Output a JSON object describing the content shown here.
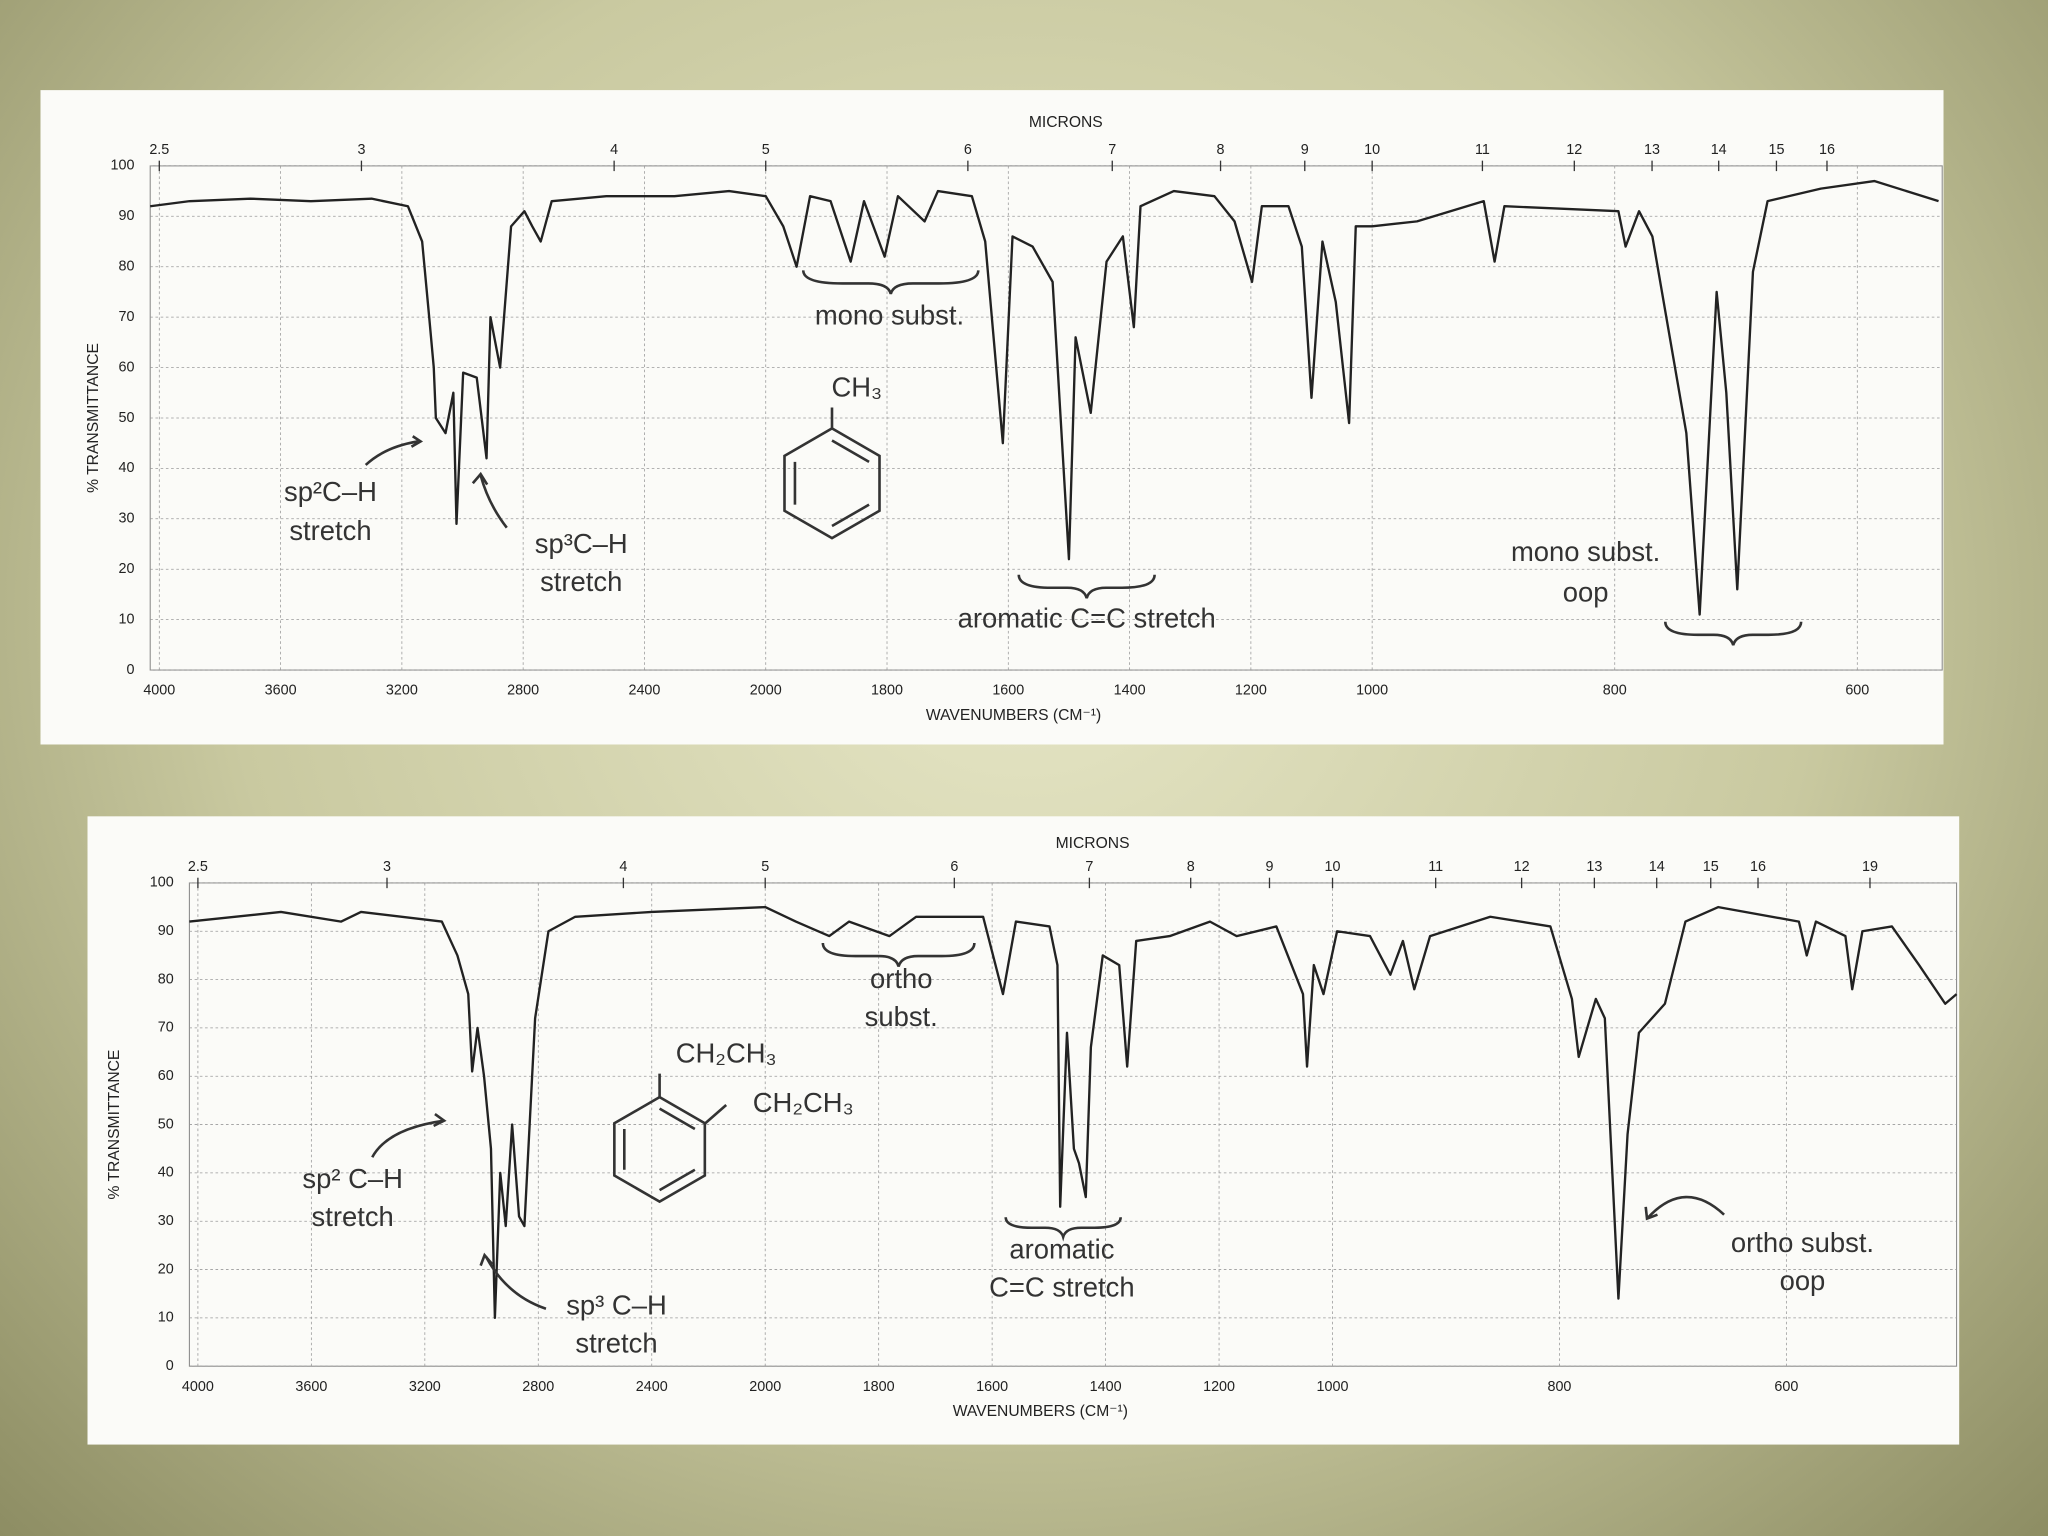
{
  "chart_data": [
    {
      "type": "line",
      "x_label": "WAVENUMBERS (CM⁻¹)",
      "y_label": "% TRANSMITTANCE",
      "x2_label": "MICRONS",
      "xlim": [
        4030,
        530
      ],
      "ylim": [
        0,
        100
      ],
      "x_scale_breaks": [
        2000,
        1000
      ],
      "xticks": [
        4000,
        3600,
        3200,
        2800,
        2400,
        2000,
        1800,
        1600,
        1400,
        1200,
        1000,
        800,
        600
      ],
      "yticks": [
        0,
        10,
        20,
        30,
        40,
        50,
        60,
        70,
        80,
        90,
        100
      ],
      "x2ticks": [
        2.5,
        3,
        4,
        5,
        6,
        7,
        8,
        9,
        10,
        11,
        12,
        13,
        14,
        15,
        16
      ],
      "grid": true,
      "color": "#222222",
      "annotations": [
        "mono subst.",
        "CH₃",
        "sp²C–H",
        "stretch",
        "sp³C–H",
        "stretch",
        "aromatic C=C stretch",
        "mono subst.",
        "oop"
      ],
      "x": [
        4030,
        3900,
        3700,
        3500,
        3300,
        3180,
        3133,
        3110,
        3095,
        3088,
        3056,
        3030,
        3020,
        2998,
        2953,
        2921,
        2908,
        2876,
        2840,
        2796,
        2770,
        2742,
        2706,
        2526,
        2301,
        2121,
        2000,
        1971,
        1949,
        1927,
        1893,
        1860,
        1838,
        1804,
        1782,
        1738,
        1716,
        1660,
        1638,
        1609,
        1593,
        1560,
        1527,
        1500,
        1489,
        1464,
        1438,
        1411,
        1393,
        1382,
        1327,
        1260,
        1227,
        1198,
        1182,
        1138,
        1116,
        1100,
        1082,
        1060,
        1038,
        1027,
        1000,
        963,
        908,
        899,
        891,
        797,
        791,
        780,
        769,
        741,
        730,
        716,
        708,
        699,
        686,
        674,
        630,
        586,
        533
      ],
      "values": [
        92,
        93,
        93.5,
        93,
        93.5,
        92,
        85,
        70,
        60,
        50,
        47,
        55,
        29,
        59,
        58,
        42,
        70,
        60,
        88,
        91,
        88,
        85,
        93,
        94,
        94,
        95,
        94,
        88,
        80,
        94,
        93,
        81,
        93,
        82,
        94,
        89,
        95,
        94,
        85,
        45,
        86,
        84,
        77,
        22,
        66,
        51,
        81,
        86,
        68,
        92,
        95,
        94,
        89,
        77,
        92,
        92,
        84,
        54,
        85,
        73,
        49,
        88,
        88,
        89,
        93,
        81,
        92,
        91,
        84,
        91,
        86,
        47,
        11,
        75,
        55,
        16,
        79,
        93,
        95.5,
        97,
        93
      ]
    },
    {
      "type": "line",
      "x_label": "WAVENUMBERS (CM⁻¹)",
      "y_label": "% TRANSMITTANCE",
      "x2_label": "MICRONS",
      "xlim": [
        4030,
        450
      ],
      "ylim": [
        0,
        100
      ],
      "x_scale_breaks": [
        2000,
        1000
      ],
      "xticks": [
        4000,
        3600,
        3200,
        2800,
        2400,
        2000,
        1800,
        1600,
        1400,
        1200,
        1000,
        800,
        600
      ],
      "yticks": [
        0,
        10,
        20,
        30,
        40,
        50,
        60,
        70,
        80,
        90,
        100
      ],
      "x2ticks": [
        2.5,
        3,
        4,
        5,
        6,
        7,
        8,
        9,
        10,
        11,
        12,
        13,
        14,
        15,
        16,
        19
      ],
      "grid": true,
      "color": "#222222",
      "annotations": [
        "ortho",
        "subst.",
        "CH₂CH₃",
        "CH₂CH₃",
        "sp² C–H",
        "stretch",
        "sp³ C–H",
        "stretch",
        "aromatic",
        "C=C stretch",
        "ortho subst.",
        "oop"
      ],
      "x": [
        4030,
        3707,
        3495,
        3425,
        3140,
        3085,
        3047,
        3033,
        3014,
        2991,
        2967,
        2953,
        2934,
        2915,
        2892,
        2868,
        2849,
        2811,
        2764,
        2670,
        2400,
        2000,
        1946,
        1887,
        1852,
        1781,
        1734,
        1616,
        1581,
        1558,
        1499,
        1485,
        1480,
        1468,
        1456,
        1447,
        1435,
        1426,
        1405,
        1376,
        1362,
        1346,
        1287,
        1216,
        1169,
        1099,
        1052,
        1045,
        1033,
        1016,
        996,
        967,
        949,
        938,
        928,
        914,
        861,
        808,
        789,
        783,
        768,
        760,
        748,
        740,
        730,
        707,
        689,
        660,
        589,
        582,
        574,
        548,
        542,
        533,
        507,
        483,
        460,
        450
      ],
      "values": [
        92,
        94,
        92,
        94,
        92,
        85,
        77,
        61,
        70,
        60,
        45,
        10,
        40,
        29,
        50,
        31,
        29,
        72,
        90,
        93,
        94,
        95,
        92,
        89,
        92,
        89,
        93,
        93,
        77,
        92,
        91,
        83,
        33,
        69,
        45,
        42,
        35,
        66,
        85,
        83,
        62,
        88,
        89,
        92,
        89,
        91,
        77,
        62,
        83,
        77,
        90,
        89,
        81,
        88,
        78,
        89,
        93,
        91,
        76,
        64,
        76,
        72,
        14,
        48,
        69,
        75,
        92,
        95,
        92,
        85,
        92,
        89,
        78,
        90,
        91,
        83,
        75,
        77
      ]
    }
  ]
}
